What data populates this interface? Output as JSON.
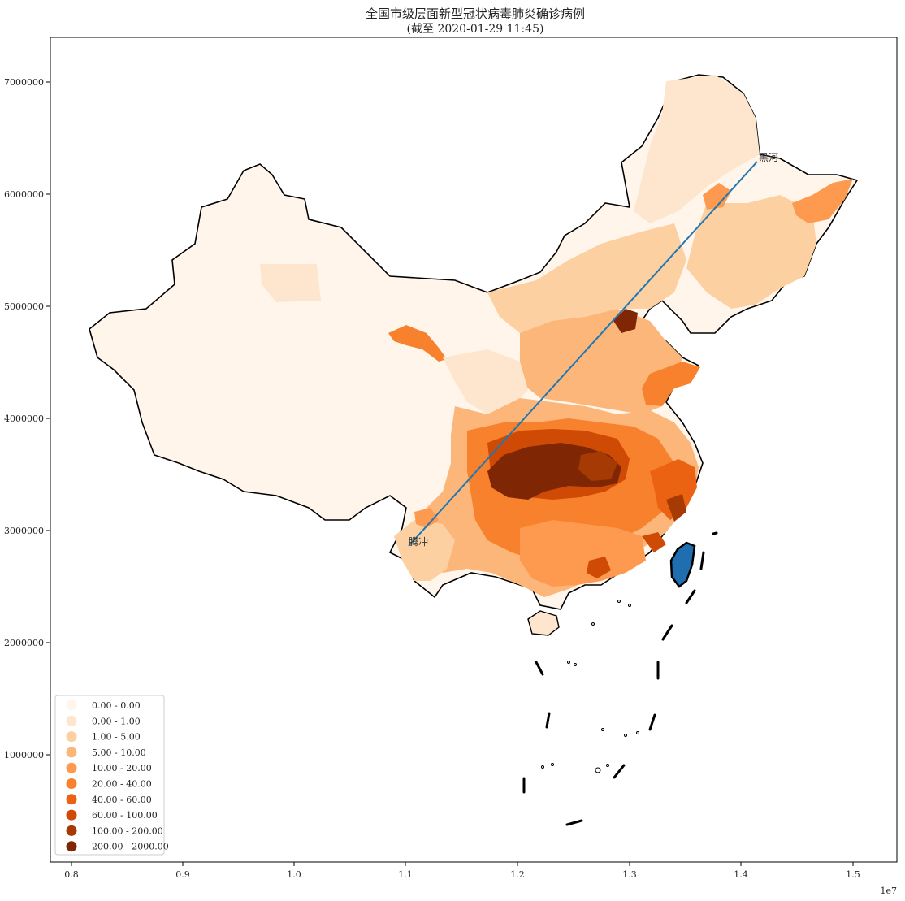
{
  "title": {
    "line1": "全国市级层面新型冠状病毒肺炎确诊病例",
    "line2": "(截至 2020-01-29 11:45)"
  },
  "axes": {
    "x_ticks": [
      "0.8",
      "0.9",
      "1.0",
      "1.1",
      "1.2",
      "1.3",
      "1.4",
      "1.5"
    ],
    "x_exponent": "1e7",
    "y_ticks": [
      "1000000",
      "2000000",
      "3000000",
      "4000000",
      "5000000",
      "6000000",
      "7000000"
    ]
  },
  "legend": {
    "items": [
      {
        "label": "0.00 - 0.00",
        "color": "#fff5eb"
      },
      {
        "label": "0.00 - 1.00",
        "color": "#fee6ce"
      },
      {
        "label": "1.00 - 5.00",
        "color": "#fdd0a2"
      },
      {
        "label": "5.00 - 10.00",
        "color": "#fdb67a"
      },
      {
        "label": "10.00 - 20.00",
        "color": "#fd9a4f"
      },
      {
        "label": "20.00 - 40.00",
        "color": "#f8812d"
      },
      {
        "label": "40.00 - 60.00",
        "color": "#eb6312"
      },
      {
        "label": "60.00 - 100.00",
        "color": "#cf4a04"
      },
      {
        "label": "100.00 - 200.00",
        "color": "#a53a04"
      },
      {
        "label": "200.00 - 2000.00",
        "color": "#7f2704"
      }
    ]
  },
  "line_labels": {
    "start": "腾冲",
    "end": "黑河"
  },
  "colors": {
    "line": "#1f77b4",
    "taiwan": "#1f6eb0",
    "border": "#000000"
  }
}
